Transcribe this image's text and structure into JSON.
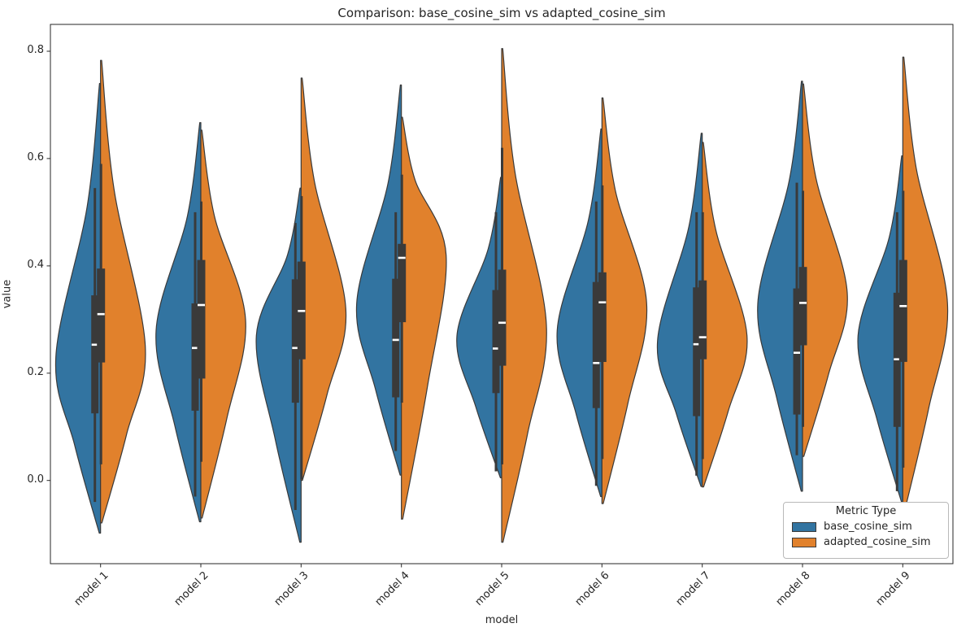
{
  "chart_data": {
    "type": "violin",
    "variant": "split-violin with inner box",
    "title": "Comparison: base_cosine_sim vs adapted_cosine_sim",
    "xlabel": "model",
    "ylabel": "value",
    "categories": [
      "model 1",
      "model 2",
      "model 3",
      "model 4",
      "model 5",
      "model 6",
      "model 7",
      "model 8",
      "model 9"
    ],
    "y_ticks": [
      0.0,
      0.2,
      0.4,
      0.6,
      0.8
    ],
    "ylim": [
      -0.155,
      0.85
    ],
    "grid": false,
    "legend": {
      "title": "Metric Type",
      "position": "lower right"
    },
    "colors": {
      "base": "#3274a1",
      "adapted": "#e1812c",
      "edge": "#3a3a3a",
      "box": "#3a3a3a",
      "median": "#ffffff",
      "spine": "#262626",
      "text": "#262626"
    },
    "series": [
      {
        "name": "base_cosine_sim",
        "color": "#3274a1",
        "side": "left",
        "violins": [
          {
            "min": -0.098,
            "max": 0.74,
            "peak": 0.23,
            "q1": 0.125,
            "q3": 0.345,
            "median": 0.253,
            "whisker_low": -0.04,
            "whisker_high": 0.545
          },
          {
            "min": -0.077,
            "max": 0.667,
            "peak": 0.28,
            "q1": 0.13,
            "q3": 0.33,
            "median": 0.247,
            "whisker_low": -0.03,
            "whisker_high": 0.5
          },
          {
            "min": -0.115,
            "max": 0.545,
            "peak": 0.27,
            "q1": 0.145,
            "q3": 0.375,
            "median": 0.247,
            "whisker_low": -0.055,
            "whisker_high": 0.48
          },
          {
            "min": 0.01,
            "max": 0.737,
            "peak": 0.33,
            "q1": 0.155,
            "q3": 0.376,
            "median": 0.262,
            "whisker_low": 0.055,
            "whisker_high": 0.5
          },
          {
            "min": 0.005,
            "max": 0.565,
            "peak": 0.27,
            "q1": 0.163,
            "q3": 0.355,
            "median": 0.246,
            "whisker_low": 0.017,
            "whisker_high": 0.5
          },
          {
            "min": -0.03,
            "max": 0.655,
            "peak": 0.28,
            "q1": 0.135,
            "q3": 0.37,
            "median": 0.219,
            "whisker_low": -0.01,
            "whisker_high": 0.52
          },
          {
            "min": -0.011,
            "max": 0.647,
            "peak": 0.26,
            "q1": 0.12,
            "q3": 0.36,
            "median": 0.254,
            "whisker_low": 0.009,
            "whisker_high": 0.5
          },
          {
            "min": -0.02,
            "max": 0.744,
            "peak": 0.33,
            "q1": 0.123,
            "q3": 0.358,
            "median": 0.238,
            "whisker_low": 0.047,
            "whisker_high": 0.555
          },
          {
            "min": -0.04,
            "max": 0.605,
            "peak": 0.27,
            "q1": 0.1,
            "q3": 0.35,
            "median": 0.226,
            "whisker_low": -0.02,
            "whisker_high": 0.5
          }
        ]
      },
      {
        "name": "adapted_cosine_sim",
        "color": "#e1812c",
        "side": "right",
        "violins": [
          {
            "min": -0.079,
            "max": 0.783,
            "peak": 0.25,
            "q1": 0.22,
            "q3": 0.395,
            "median": 0.31,
            "whisker_low": 0.03,
            "whisker_high": 0.59
          },
          {
            "min": -0.07,
            "max": 0.653,
            "peak": 0.3,
            "q1": 0.19,
            "q3": 0.411,
            "median": 0.327,
            "whisker_low": 0.035,
            "whisker_high": 0.52
          },
          {
            "min": 0.0,
            "max": 0.75,
            "peak": 0.32,
            "q1": 0.226,
            "q3": 0.408,
            "median": 0.316,
            "whisker_low": 0.002,
            "whisker_high": 0.53
          },
          {
            "min": -0.072,
            "max": 0.677,
            "peak": 0.42,
            "q1": 0.295,
            "q3": 0.441,
            "median": 0.415,
            "whisker_low": 0.145,
            "whisker_high": 0.57
          },
          {
            "min": -0.115,
            "max": 0.805,
            "peak": 0.29,
            "q1": 0.214,
            "q3": 0.393,
            "median": 0.294,
            "whisker_low": 0.03,
            "whisker_high": 0.62
          },
          {
            "min": -0.043,
            "max": 0.713,
            "peak": 0.33,
            "q1": 0.221,
            "q3": 0.388,
            "median": 0.332,
            "whisker_low": 0.04,
            "whisker_high": 0.55
          },
          {
            "min": -0.012,
            "max": 0.63,
            "peak": 0.27,
            "q1": 0.226,
            "q3": 0.373,
            "median": 0.267,
            "whisker_low": 0.04,
            "whisker_high": 0.5
          },
          {
            "min": 0.045,
            "max": 0.739,
            "peak": 0.35,
            "q1": 0.252,
            "q3": 0.398,
            "median": 0.331,
            "whisker_low": 0.1,
            "whisker_high": 0.54
          },
          {
            "min": -0.061,
            "max": 0.789,
            "peak": 0.33,
            "q1": 0.221,
            "q3": 0.411,
            "median": 0.325,
            "whisker_low": 0.024,
            "whisker_high": 0.54
          }
        ]
      }
    ]
  }
}
